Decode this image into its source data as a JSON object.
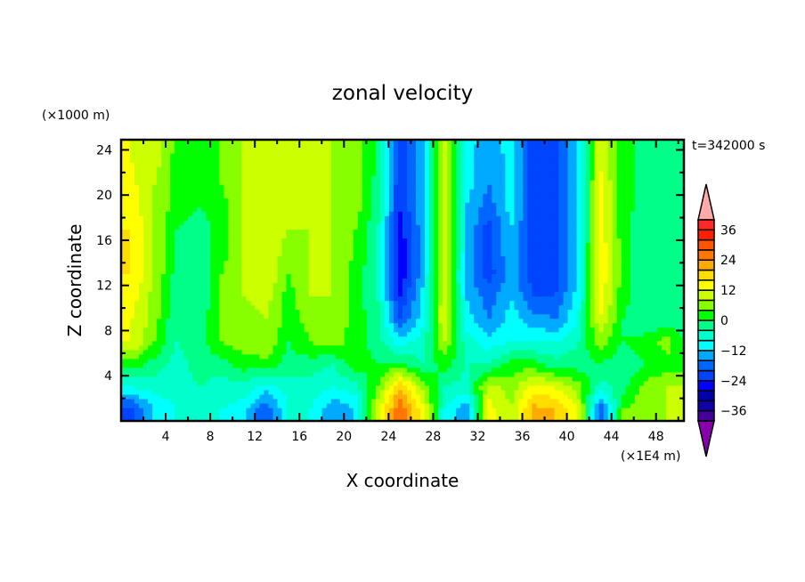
{
  "chart_data": {
    "type": "heatmap",
    "title": "zonal velocity",
    "xlabel": "X coordinate",
    "ylabel": "Z coordinate",
    "x_units": "(×1E4 m)",
    "y_units": "(×1000 m)",
    "annotation": "t=342000 s",
    "xlim": [
      0,
      50.5
    ],
    "ylim": [
      0,
      24.9
    ],
    "x_ticks": [
      4,
      8,
      12,
      16,
      20,
      24,
      28,
      32,
      36,
      40,
      44,
      48
    ],
    "y_ticks": [
      4,
      8,
      12,
      16,
      20,
      24
    ],
    "x_centers": [
      1,
      3,
      5,
      7,
      9,
      11,
      13,
      15,
      17,
      19,
      21,
      23,
      25,
      27,
      29,
      31,
      33,
      35,
      37,
      39,
      41,
      43,
      45,
      47,
      49,
      51
    ],
    "z_centers": [
      25,
      23,
      21,
      19,
      17,
      15,
      13,
      11,
      9,
      7,
      5,
      3,
      1
    ],
    "values": [
      [
        12,
        10,
        4,
        2,
        4,
        8,
        8,
        10,
        8,
        8,
        6,
        0,
        -22,
        -14,
        10,
        -10,
        -14,
        -10,
        -22,
        -22,
        -12,
        12,
        2,
        -2,
        -2,
        -2
      ],
      [
        12,
        10,
        2,
        2,
        4,
        8,
        8,
        10,
        8,
        8,
        6,
        0,
        -22,
        -14,
        10,
        -10,
        -16,
        -10,
        -22,
        -22,
        -12,
        12,
        2,
        -2,
        -2,
        -2
      ],
      [
        13,
        8,
        2,
        2,
        4,
        8,
        10,
        10,
        8,
        8,
        6,
        -2,
        -24,
        -14,
        12,
        -10,
        -16,
        -10,
        -22,
        -22,
        -12,
        13,
        2,
        -2,
        -2,
        -2
      ],
      [
        14,
        8,
        2,
        0,
        2,
        8,
        10,
        10,
        8,
        8,
        6,
        -2,
        -24,
        -14,
        12,
        -12,
        -18,
        -10,
        -22,
        -22,
        -12,
        14,
        2,
        -2,
        -2,
        -2
      ],
      [
        16,
        8,
        0,
        -2,
        2,
        8,
        12,
        8,
        8,
        8,
        4,
        -4,
        -26,
        -14,
        12,
        -12,
        -22,
        -12,
        -22,
        -22,
        -12,
        14,
        2,
        -4,
        -2,
        -2
      ],
      [
        16,
        8,
        0,
        -2,
        2,
        8,
        12,
        6,
        8,
        8,
        4,
        -4,
        -28,
        -14,
        12,
        -12,
        -22,
        -12,
        -22,
        -22,
        -12,
        16,
        2,
        -4,
        -2,
        -2
      ],
      [
        16,
        8,
        -2,
        -4,
        4,
        8,
        12,
        4,
        8,
        8,
        2,
        -4,
        -28,
        -14,
        12,
        -14,
        -22,
        -14,
        -22,
        -22,
        -12,
        16,
        2,
        -4,
        -2,
        -2
      ],
      [
        14,
        6,
        -2,
        -4,
        4,
        8,
        10,
        2,
        8,
        8,
        2,
        -4,
        -24,
        -12,
        12,
        -12,
        -18,
        -12,
        -20,
        -20,
        -10,
        14,
        2,
        -4,
        -2,
        -2
      ],
      [
        12,
        6,
        -4,
        -2,
        4,
        6,
        8,
        2,
        6,
        8,
        2,
        -2,
        -20,
        -10,
        12,
        -10,
        -16,
        -10,
        -14,
        -16,
        -8,
        12,
        0,
        -4,
        -2,
        -2
      ],
      [
        12,
        4,
        -4,
        -2,
        4,
        6,
        8,
        0,
        4,
        6,
        2,
        -2,
        -10,
        -6,
        8,
        -6,
        -10,
        -8,
        -8,
        -8,
        -4,
        6,
        0,
        2,
        6,
        -2
      ],
      [
        2,
        -2,
        -6,
        -2,
        -2,
        2,
        2,
        -2,
        -2,
        -4,
        2,
        0,
        2,
        -4,
        2,
        -4,
        -4,
        2,
        2,
        -2,
        -2,
        0,
        -4,
        0,
        2,
        2
      ],
      [
        -8,
        -6,
        -6,
        -4,
        -6,
        -6,
        -10,
        -6,
        -6,
        -8,
        -6,
        4,
        20,
        8,
        -4,
        -6,
        10,
        6,
        14,
        12,
        6,
        -6,
        -2,
        6,
        8,
        8
      ],
      [
        -22,
        -12,
        -8,
        -4,
        -8,
        -10,
        -20,
        -8,
        -8,
        -16,
        -12,
        10,
        28,
        14,
        -8,
        -16,
        14,
        8,
        22,
        20,
        12,
        -20,
        4,
        6,
        8,
        8
      ]
    ],
    "colorbar": {
      "levels_min": -40,
      "levels_max": 40,
      "level_step": 4,
      "labels": [
        "36",
        "24",
        "12",
        "0",
        "−12",
        "−24",
        "−36"
      ],
      "label_values": [
        36,
        24,
        12,
        0,
        -12,
        -24,
        -36
      ],
      "colors": [
        "#440099",
        "#1100aa",
        "#0000aa",
        "#0000ff",
        "#0044ff",
        "#0066ff",
        "#00aaff",
        "#00ffff",
        "#00ffcc",
        "#00ff88",
        "#00ff00",
        "#88ff00",
        "#ccff00",
        "#ffff00",
        "#ffdd00",
        "#ffaa00",
        "#ff7700",
        "#ff5500",
        "#ff2000",
        "#ff2828"
      ],
      "under_color": "#8800aa",
      "over_color": "#ffaaaa"
    }
  }
}
